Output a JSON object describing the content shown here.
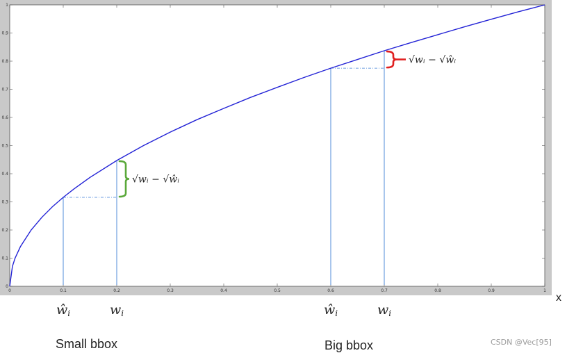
{
  "chart_data": {
    "type": "line",
    "xlabel": "x",
    "xlim": [
      0,
      1
    ],
    "ylim": [
      0,
      1
    ],
    "x_ticks": [
      0,
      0.1,
      0.2,
      0.3,
      0.4,
      0.5,
      0.6,
      0.7,
      0.8,
      0.9,
      1
    ],
    "x_tick_labels": [
      "0",
      "0.1",
      "0.2",
      "0.3",
      "0.4",
      "0.5",
      "0.6",
      "0.7",
      "0.8",
      "0.9",
      "1"
    ],
    "y_ticks": [
      0,
      0.1,
      0.2,
      0.3,
      0.4,
      0.5,
      0.6,
      0.7,
      0.8,
      0.9,
      1
    ],
    "y_tick_labels": [
      "0",
      "0.1",
      "0.2",
      "0.3",
      "0.4",
      "0.5",
      "0.6",
      "0.7",
      "0.8",
      "0.9",
      "1"
    ],
    "grid": false,
    "series": [
      {
        "color": "#2323d6",
        "x": [
          0,
          0.005,
          0.01,
          0.02,
          0.04,
          0.06,
          0.08,
          0.1,
          0.12,
          0.15,
          0.2,
          0.25,
          0.3,
          0.35,
          0.4,
          0.45,
          0.5,
          0.55,
          0.6,
          0.65,
          0.7,
          0.75,
          0.8,
          0.85,
          0.9,
          0.95,
          1
        ],
        "y": [
          0,
          0.071,
          0.1,
          0.141,
          0.2,
          0.245,
          0.283,
          0.316,
          0.346,
          0.387,
          0.447,
          0.5,
          0.548,
          0.592,
          0.632,
          0.671,
          0.707,
          0.742,
          0.775,
          0.806,
          0.837,
          0.866,
          0.894,
          0.922,
          0.949,
          0.975,
          1
        ]
      }
    ],
    "annotations": [
      {
        "group": "Small bbox",
        "x_hat": 0.1,
        "x": 0.2,
        "color": "#5aa83a",
        "bracket_label": "√wᵢ − √ŵᵢ",
        "hat_label": "ŵ",
        "w_label": "w",
        "subscript": "i"
      },
      {
        "group": "Big bbox",
        "x_hat": 0.6,
        "x": 0.7,
        "color": "#e02020",
        "bracket_label": "√wᵢ − √ŵᵢ",
        "hat_label": "ŵ",
        "w_label": "w",
        "subscript": "i"
      }
    ]
  },
  "captions": {
    "small": "Small bbox",
    "big": "Big bbox"
  },
  "watermark": "CSDN @Vec[95]"
}
